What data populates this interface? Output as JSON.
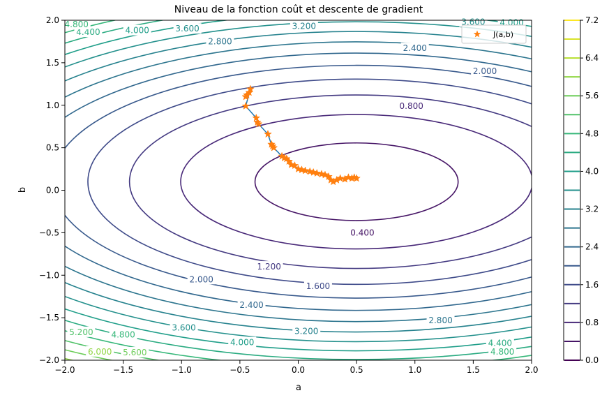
{
  "chart_data": {
    "type": "contour",
    "title": "Niveau de la fonction coût et descente de gradient",
    "xlabel": "a",
    "ylabel": "b",
    "xlim": [
      -2.0,
      2.0
    ],
    "ylim": [
      -2.0,
      2.0
    ],
    "x_ticks": [
      "−2.0",
      "−1.5",
      "−1.0",
      "−0.5",
      "0.0",
      "0.5",
      "1.0",
      "1.5",
      "2.0"
    ],
    "y_ticks": [
      "−2.0",
      "−1.5",
      "−1.0",
      "−0.5",
      "0.0",
      "0.5",
      "1.0",
      "1.5",
      "2.0"
    ],
    "x_tick_values": [
      -2.0,
      -1.5,
      -1.0,
      -0.5,
      0.0,
      0.5,
      1.0,
      1.5,
      2.0
    ],
    "y_tick_values": [
      -2.0,
      -1.5,
      -1.0,
      -0.5,
      0.0,
      0.5,
      1.0,
      1.5,
      2.0
    ],
    "function": {
      "center_a": 0.5,
      "center_b": 0.1,
      "coef_a": 0.264,
      "coef_b": 0.96,
      "min_value": 0.2
    },
    "levels": [
      0.4,
      0.8,
      1.2,
      1.6,
      2.0,
      2.4,
      2.8,
      3.2,
      3.6,
      4.0,
      4.4,
      4.8,
      5.2,
      5.6,
      6.0,
      6.4,
      6.8,
      7.2
    ],
    "contour_labels": [
      {
        "text": "0.400",
        "a": 0.55,
        "b": -0.5
      },
      {
        "text": "0.800",
        "a": 0.97,
        "b": 0.99
      },
      {
        "text": "1.200",
        "a": -0.25,
        "b": -0.9
      },
      {
        "text": "1.600",
        "a": 0.17,
        "b": -1.13
      },
      {
        "text": "2.000",
        "a": -0.83,
        "b": -1.05
      },
      {
        "text": "2.000",
        "a": 1.6,
        "b": 1.4
      },
      {
        "text": "2.400",
        "a": -0.4,
        "b": -1.35
      },
      {
        "text": "2.400",
        "a": 1.0,
        "b": 1.67
      },
      {
        "text": "2.800",
        "a": -0.67,
        "b": 1.75
      },
      {
        "text": "2.800",
        "a": 1.22,
        "b": -1.53
      },
      {
        "text": "3.200",
        "a": 0.05,
        "b": 1.93
      },
      {
        "text": "3.200",
        "a": 0.07,
        "b": -1.66
      },
      {
        "text": "3.600",
        "a": -0.95,
        "b": 1.9
      },
      {
        "text": "3.600",
        "a": -0.98,
        "b": -1.62
      },
      {
        "text": "3.600",
        "a": 1.5,
        "b": 1.98
      },
      {
        "text": "4.000",
        "a": -1.38,
        "b": 1.88
      },
      {
        "text": "4.000",
        "a": -0.48,
        "b": -1.79
      },
      {
        "text": "4.000",
        "a": 1.83,
        "b": 1.97
      },
      {
        "text": "4.400",
        "a": -1.8,
        "b": 1.86
      },
      {
        "text": "4.400",
        "a": 1.73,
        "b": -1.8
      },
      {
        "text": "4.800",
        "a": -1.9,
        "b": 1.95
      },
      {
        "text": "4.800",
        "a": -1.5,
        "b": -1.7
      },
      {
        "text": "4.800",
        "a": 1.75,
        "b": -1.9
      },
      {
        "text": "5.200",
        "a": -1.86,
        "b": -1.67
      },
      {
        "text": "5.600",
        "a": -1.4,
        "b": -1.91
      },
      {
        "text": "6.000",
        "a": -1.7,
        "b": -1.9
      }
    ],
    "series": [
      {
        "name": "J(a,b)",
        "color": "#ff7f0e",
        "line_color": "#1f77b4",
        "marker": "star",
        "a": [
          -0.45,
          -0.44,
          -0.42,
          -0.41,
          -0.45,
          -0.36,
          -0.35,
          -0.34,
          -0.26,
          -0.23,
          -0.22,
          -0.21,
          -0.14,
          -0.12,
          -0.1,
          -0.08,
          -0.06,
          -0.03,
          0.0,
          0.03,
          0.06,
          0.1,
          0.13,
          0.16,
          0.2,
          0.23,
          0.26,
          0.28,
          0.3,
          0.33,
          0.36,
          0.4,
          0.43,
          0.46,
          0.48,
          0.5
        ],
        "b": [
          1.1,
          1.12,
          1.15,
          1.19,
          0.99,
          0.85,
          0.8,
          0.78,
          0.66,
          0.54,
          0.52,
          0.5,
          0.4,
          0.38,
          0.37,
          0.34,
          0.3,
          0.29,
          0.25,
          0.24,
          0.23,
          0.22,
          0.21,
          0.2,
          0.19,
          0.18,
          0.16,
          0.12,
          0.1,
          0.12,
          0.14,
          0.13,
          0.15,
          0.14,
          0.15,
          0.14
        ]
      }
    ],
    "legend": {
      "position": "top-right",
      "entries": [
        "J(a,b)"
      ]
    },
    "colorbar": {
      "levels": [
        0.0,
        0.4,
        0.8,
        1.2,
        1.6,
        2.0,
        2.4,
        2.8,
        3.2,
        3.6,
        4.0,
        4.4,
        4.8,
        5.2,
        5.6,
        6.0,
        6.4,
        6.8,
        7.2
      ],
      "tick_labels": [
        "0.0",
        "0.8",
        "1.6",
        "2.4",
        "3.2",
        "4.0",
        "4.8",
        "5.6",
        "6.4",
        "7.2"
      ],
      "tick_values": [
        0.0,
        0.8,
        1.6,
        2.4,
        3.2,
        4.0,
        4.8,
        5.6,
        6.4,
        7.2
      ]
    },
    "grid": false
  }
}
